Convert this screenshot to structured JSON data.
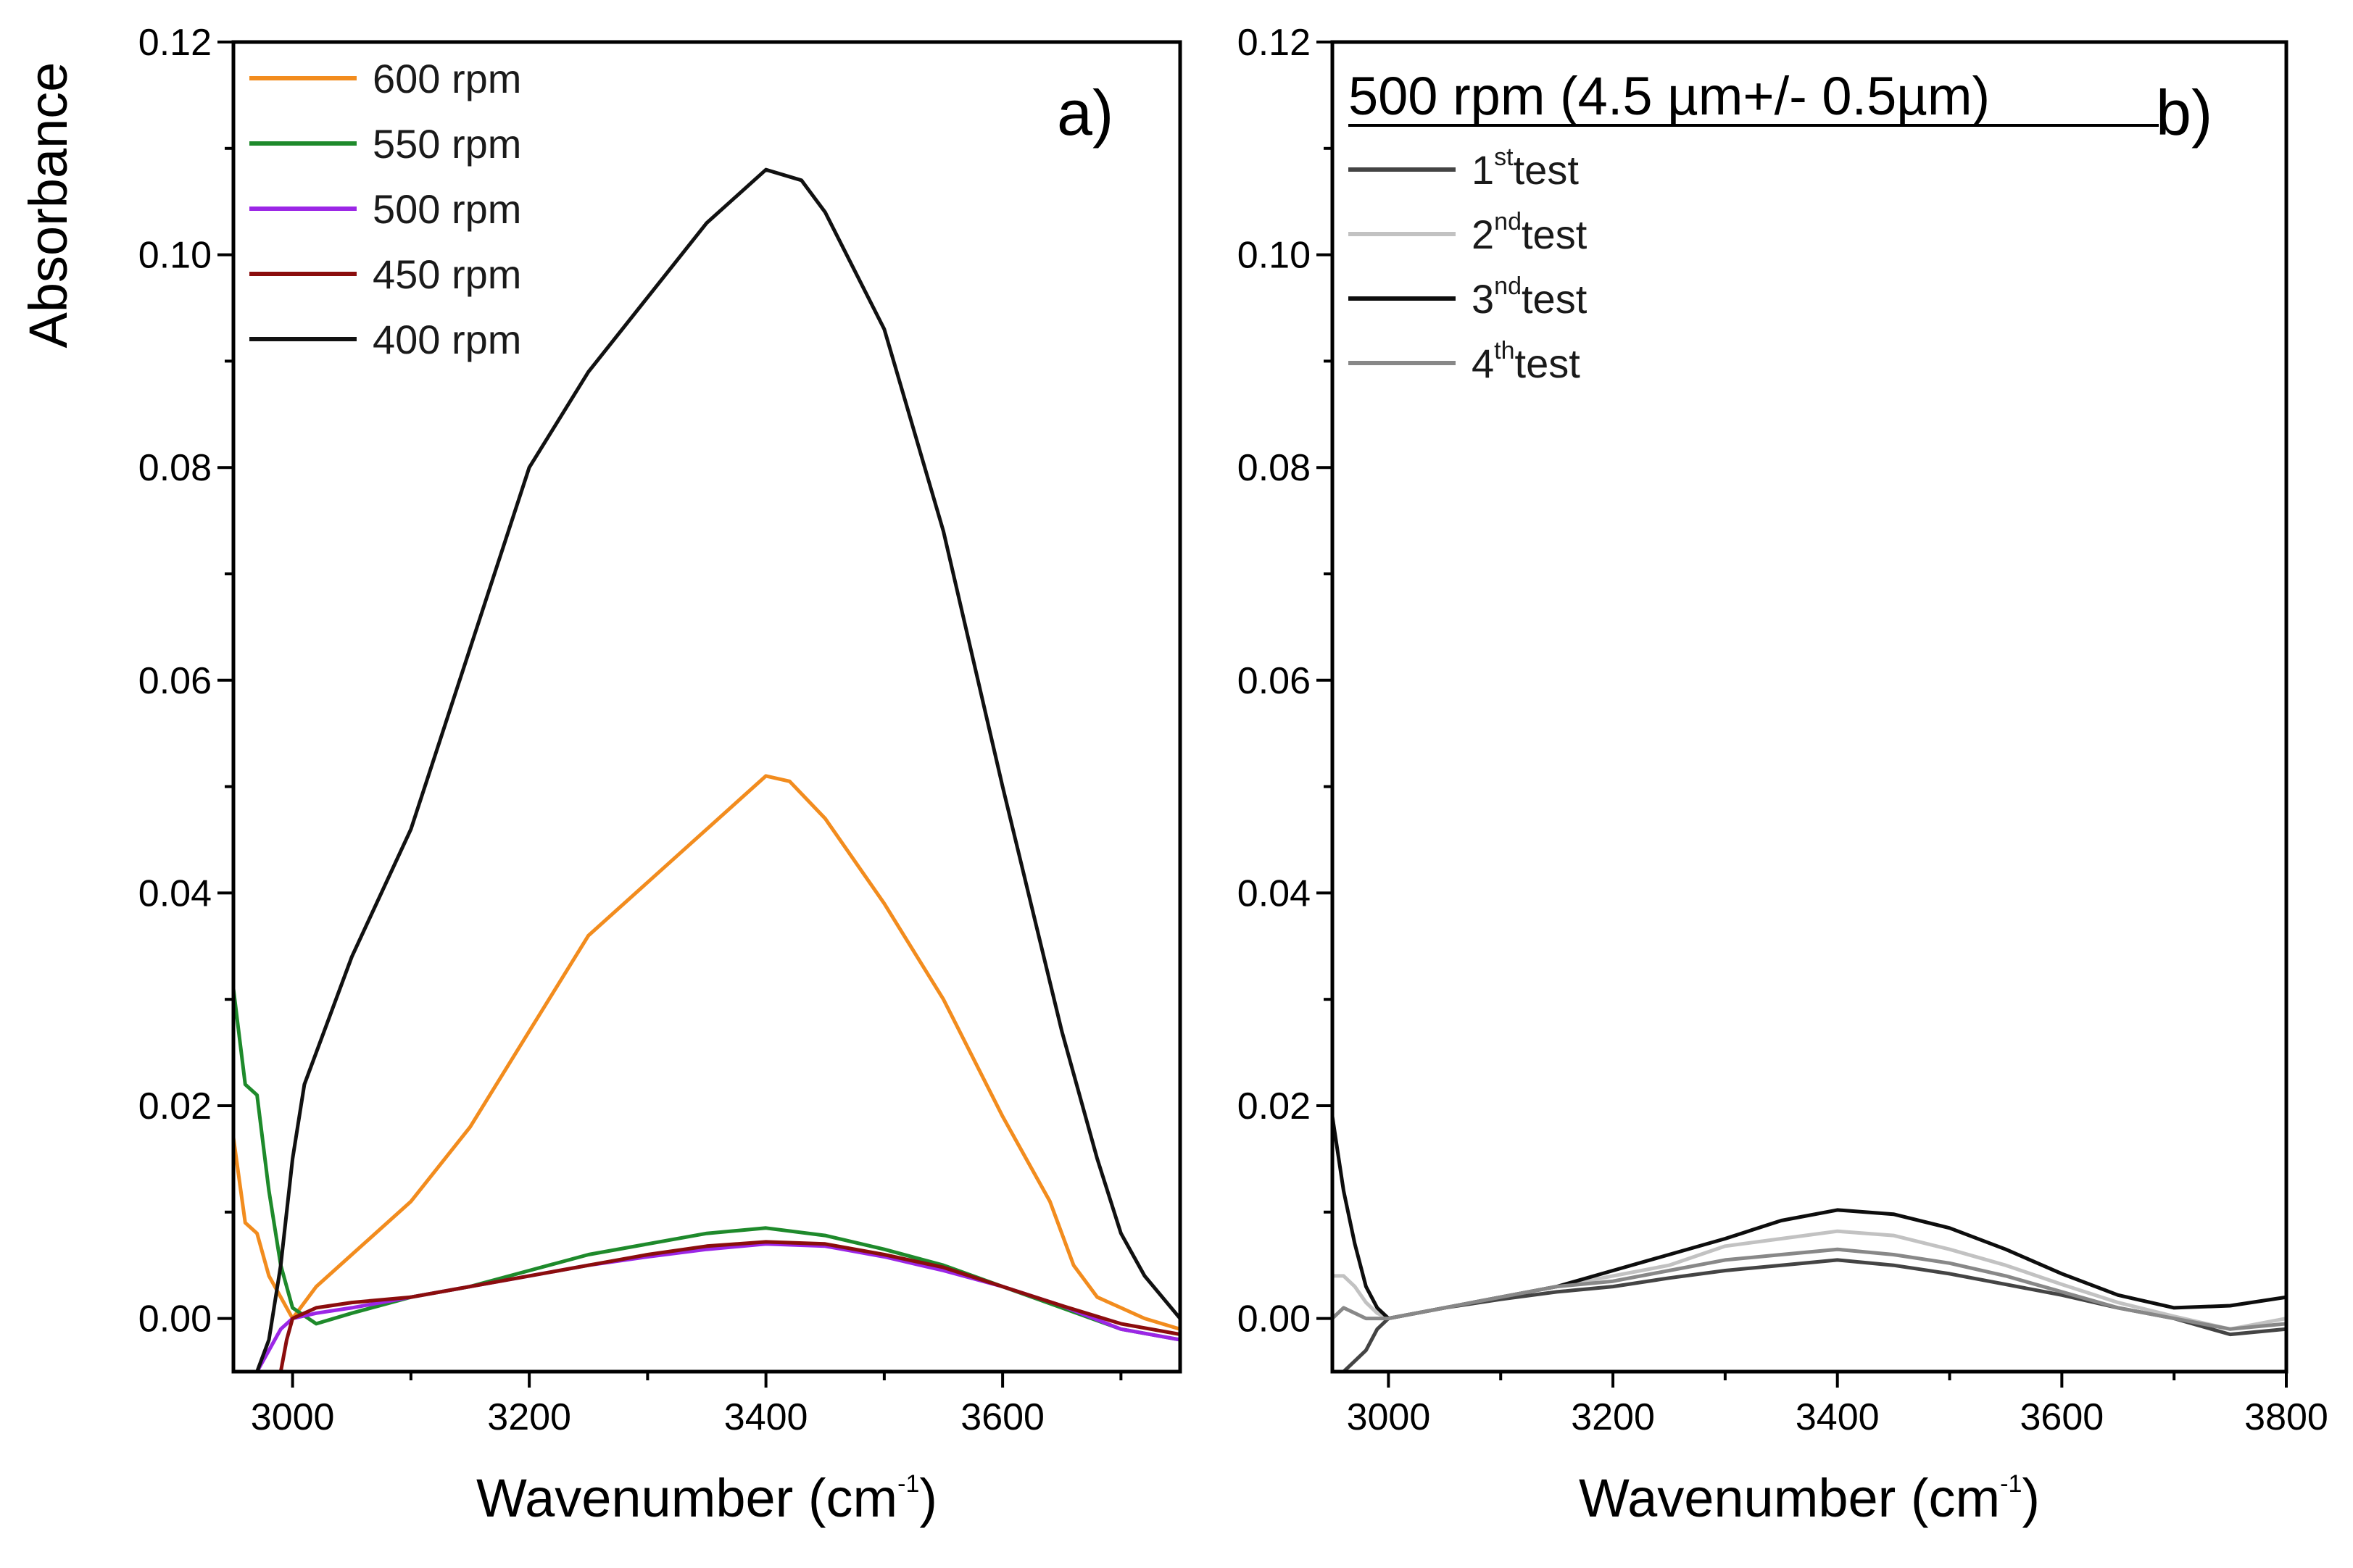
{
  "chart_data": [
    {
      "panel": "a)",
      "type": "line",
      "xlabel": "Wavenumber (cm",
      "xlabel_sup": "-1",
      "xlabel_tail": ")",
      "ylabel": "Absorbance",
      "xlim": [
        2950,
        3750
      ],
      "ylim": [
        -0.005,
        0.12
      ],
      "xticks": [
        "3000",
        "3200",
        "3400",
        "3600"
      ],
      "xtick_values": [
        3000,
        3200,
        3400,
        3600
      ],
      "yticks": [
        "0.00",
        "0.02",
        "0.04",
        "0.06",
        "0.08",
        "0.10",
        "0.12"
      ],
      "ytick_values": [
        0,
        0.02,
        0.04,
        0.06,
        0.08,
        0.1,
        0.12
      ],
      "legend_position": "top-left",
      "series": [
        {
          "name": "600 rpm",
          "color": "#f28c1e",
          "x": [
            2950,
            2960,
            2970,
            2980,
            2990,
            3000,
            3020,
            3050,
            3100,
            3150,
            3200,
            3250,
            3300,
            3350,
            3400,
            3420,
            3450,
            3500,
            3550,
            3600,
            3640,
            3660,
            3680,
            3700,
            3720,
            3750
          ],
          "y": [
            0.017,
            0.009,
            0.008,
            0.004,
            0.002,
            0.0,
            0.003,
            0.006,
            0.011,
            0.018,
            0.027,
            0.036,
            0.041,
            0.046,
            0.051,
            0.0505,
            0.047,
            0.039,
            0.03,
            0.019,
            0.011,
            0.005,
            0.002,
            0.001,
            0.0,
            -0.001
          ]
        },
        {
          "name": "550 rpm",
          "color": "#1e8a2b",
          "x": [
            2950,
            2960,
            2970,
            2980,
            2990,
            3000,
            3020,
            3050,
            3100,
            3150,
            3200,
            3250,
            3300,
            3350,
            3400,
            3450,
            3500,
            3550,
            3600,
            3650,
            3700,
            3750
          ],
          "y": [
            0.031,
            0.022,
            0.021,
            0.012,
            0.005,
            0.001,
            -0.0005,
            0.0005,
            0.002,
            0.003,
            0.0045,
            0.006,
            0.007,
            0.008,
            0.0085,
            0.0078,
            0.0065,
            0.005,
            0.003,
            0.001,
            -0.001,
            -0.002
          ]
        },
        {
          "name": "500 rpm",
          "color": "#9b26e6",
          "x": [
            2970,
            2980,
            2990,
            3000,
            3020,
            3050,
            3100,
            3150,
            3200,
            3250,
            3300,
            3350,
            3400,
            3450,
            3500,
            3550,
            3600,
            3650,
            3700,
            3750
          ],
          "y": [
            -0.005,
            -0.003,
            -0.001,
            0.0,
            0.0005,
            0.001,
            0.002,
            0.003,
            0.004,
            0.005,
            0.0058,
            0.0065,
            0.007,
            0.0068,
            0.0058,
            0.0045,
            0.003,
            0.0012,
            -0.001,
            -0.002
          ]
        },
        {
          "name": "450 rpm",
          "color": "#8b0d0d",
          "x": [
            2990,
            2995,
            3000,
            3020,
            3050,
            3100,
            3150,
            3200,
            3250,
            3300,
            3350,
            3400,
            3450,
            3500,
            3550,
            3600,
            3650,
            3700,
            3750
          ],
          "y": [
            -0.005,
            -0.002,
            0.0,
            0.001,
            0.0015,
            0.002,
            0.003,
            0.004,
            0.005,
            0.006,
            0.0068,
            0.0072,
            0.007,
            0.006,
            0.0048,
            0.003,
            0.0012,
            -0.0005,
            -0.0015
          ]
        },
        {
          "name": "400 rpm",
          "color": "#111111",
          "x": [
            2970,
            2980,
            2990,
            3000,
            3010,
            3030,
            3050,
            3100,
            3150,
            3200,
            3250,
            3300,
            3350,
            3400,
            3430,
            3450,
            3500,
            3550,
            3600,
            3650,
            3680,
            3700,
            3720,
            3750
          ],
          "y": [
            -0.005,
            -0.002,
            0.005,
            0.015,
            0.022,
            0.028,
            0.034,
            0.046,
            0.063,
            0.08,
            0.089,
            0.096,
            0.103,
            0.108,
            0.107,
            0.104,
            0.093,
            0.074,
            0.05,
            0.027,
            0.015,
            0.008,
            0.004,
            0.0
          ]
        }
      ]
    },
    {
      "panel": "b)",
      "type": "line",
      "xlabel": "Wavenumber (cm",
      "xlabel_sup": "-1",
      "xlabel_tail": ")",
      "ylabel": "",
      "title": "500 rpm (4.5 µm+/- 0.5µm)",
      "xlim": [
        2950,
        3800
      ],
      "ylim": [
        -0.005,
        0.12
      ],
      "xticks": [
        "3000",
        "3200",
        "3400",
        "3600",
        "3800"
      ],
      "xtick_values": [
        3000,
        3200,
        3400,
        3600,
        3800
      ],
      "yticks": [
        "0.00",
        "0.02",
        "0.04",
        "0.06",
        "0.08",
        "0.10",
        "0.12"
      ],
      "ytick_values": [
        0,
        0.02,
        0.04,
        0.06,
        0.08,
        0.1,
        0.12
      ],
      "legend_position": "top-left",
      "series": [
        {
          "name": "1",
          "name_sup": "st",
          "name_tail": "test",
          "color": "#444444",
          "x": [
            2960,
            2970,
            2980,
            2990,
            3000,
            3050,
            3100,
            3150,
            3200,
            3250,
            3300,
            3350,
            3400,
            3450,
            3500,
            3550,
            3600,
            3650,
            3700,
            3750,
            3800
          ],
          "y": [
            -0.005,
            -0.004,
            -0.003,
            -0.001,
            0.0,
            0.001,
            0.0018,
            0.0025,
            0.003,
            0.0038,
            0.0045,
            0.005,
            0.0055,
            0.005,
            0.0042,
            0.0032,
            0.0022,
            0.001,
            0.0,
            -0.0015,
            -0.001
          ]
        },
        {
          "name": "2",
          "name_sup": "nd",
          "name_tail": "test",
          "color": "#c2c2c2",
          "x": [
            2950,
            2960,
            2970,
            2980,
            2990,
            3000,
            3050,
            3100,
            3150,
            3200,
            3250,
            3300,
            3350,
            3400,
            3450,
            3500,
            3550,
            3600,
            3650,
            3700,
            3750,
            3800
          ],
          "y": [
            0.004,
            0.004,
            0.003,
            0.0015,
            0.0005,
            0.0,
            0.001,
            0.002,
            0.003,
            0.004,
            0.005,
            0.0068,
            0.0075,
            0.0082,
            0.0078,
            0.0065,
            0.005,
            0.0032,
            0.0015,
            0.0002,
            -0.001,
            0.0
          ]
        },
        {
          "name": "3",
          "name_sup": "nd",
          "name_tail": "test",
          "color": "#0d0d0d",
          "x": [
            2950,
            2960,
            2970,
            2980,
            2990,
            3000,
            3050,
            3100,
            3150,
            3200,
            3250,
            3300,
            3350,
            3400,
            3450,
            3500,
            3550,
            3600,
            3650,
            3700,
            3750,
            3800
          ],
          "y": [
            0.019,
            0.012,
            0.007,
            0.003,
            0.001,
            0.0,
            0.001,
            0.002,
            0.003,
            0.0045,
            0.006,
            0.0075,
            0.0092,
            0.0102,
            0.0098,
            0.0085,
            0.0065,
            0.0042,
            0.0022,
            0.001,
            0.0012,
            0.002
          ]
        },
        {
          "name": "4",
          "name_sup": "th",
          "name_tail": "test",
          "color": "#888888",
          "x": [
            2950,
            2960,
            2970,
            2980,
            2990,
            3000,
            3050,
            3100,
            3150,
            3200,
            3250,
            3300,
            3350,
            3400,
            3450,
            3500,
            3550,
            3600,
            3650,
            3700,
            3750,
            3800
          ],
          "y": [
            0.0,
            0.001,
            0.0005,
            0.0,
            0.0,
            0.0,
            0.001,
            0.002,
            0.003,
            0.0035,
            0.0045,
            0.0055,
            0.006,
            0.0065,
            0.006,
            0.0052,
            0.004,
            0.0025,
            0.001,
            0.0,
            -0.001,
            -0.0005
          ]
        }
      ]
    }
  ]
}
